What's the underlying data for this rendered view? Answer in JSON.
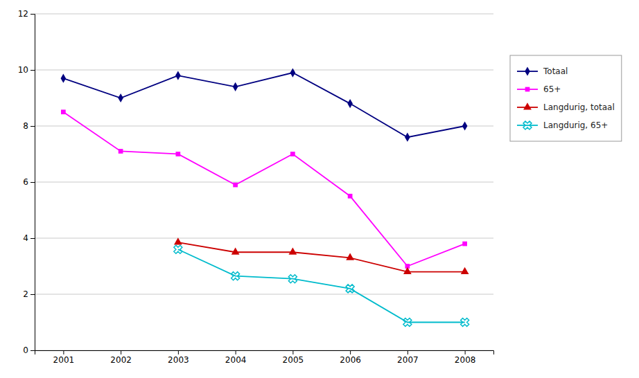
{
  "chart_data": {
    "type": "line",
    "x": [
      2001,
      2002,
      2003,
      2004,
      2005,
      2006,
      2007,
      2008
    ],
    "xlim": [
      2000.5,
      2008.5
    ],
    "xticks": [
      2001,
      2002,
      2003,
      2004,
      2005,
      2006,
      2007,
      2008
    ],
    "ylim": [
      0,
      12
    ],
    "yticks": [
      0,
      2,
      4,
      6,
      8,
      10,
      12
    ],
    "grid": true,
    "legend": "right",
    "series": [
      {
        "name": "Totaal",
        "color": "#000080",
        "marker": "diamond",
        "values": [
          9.7,
          9.0,
          9.8,
          9.4,
          9.9,
          8.8,
          7.6,
          8.0
        ]
      },
      {
        "name": "65+",
        "color": "#FF00FF",
        "marker": "square",
        "values": [
          8.5,
          7.1,
          7.0,
          5.9,
          7.0,
          5.5,
          3.0,
          3.8
        ]
      },
      {
        "name": "Langdurig, totaal",
        "color": "#CC0000",
        "marker": "triangle",
        "values": [
          null,
          null,
          3.85,
          3.5,
          3.5,
          3.3,
          2.8,
          2.8
        ]
      },
      {
        "name": "Langdurig, 65+",
        "color": "#00BBCC",
        "marker": "x",
        "values": [
          null,
          null,
          3.6,
          2.65,
          2.55,
          2.2,
          1.0,
          1.0
        ]
      }
    ]
  }
}
